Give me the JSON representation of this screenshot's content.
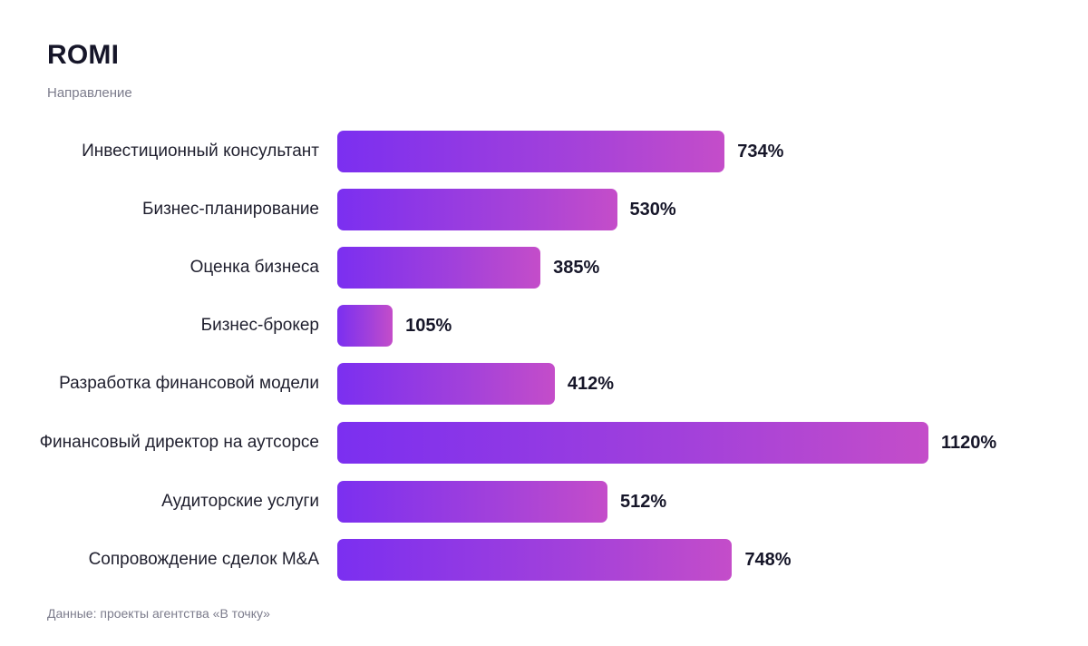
{
  "chart_data": {
    "type": "bar",
    "orientation": "horizontal",
    "title": "ROMI",
    "subtitle": "Направление",
    "categories": [
      "Инвестиционный консультант",
      "Бизнес-планирование",
      "Оценка бизнеса",
      "Бизнес-брокер",
      "Разработка финансовой модели",
      "Финансовый директор на аутсорсе",
      "Аудиторские услуги",
      "Сопровождение сделок M&A"
    ],
    "values": [
      734,
      530,
      385,
      105,
      412,
      1120,
      512,
      748
    ],
    "value_labels": [
      "734%",
      "530%",
      "385%",
      "105%",
      "412%",
      "1120%",
      "512%",
      "748%"
    ],
    "unit": "%",
    "grid": false,
    "colors": {
      "bar_start": "#7b2ff0",
      "bar_end": "#c44dc9"
    }
  },
  "source": "Данные: проекты агентства «В точку»"
}
